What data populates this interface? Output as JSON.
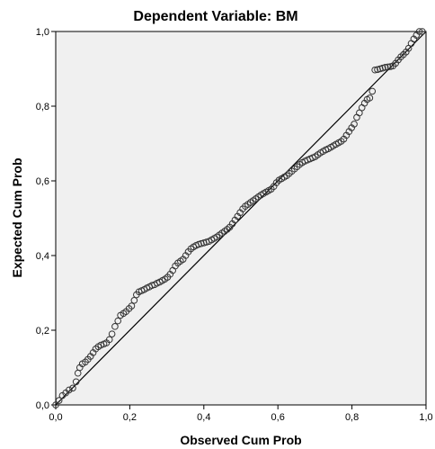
{
  "chart_data": {
    "type": "scatter",
    "title": "Dependent Variable: BM",
    "xlabel": "Observed Cum Prob",
    "ylabel": "Expected Cum Prob",
    "xlim": [
      0,
      1
    ],
    "ylim": [
      0,
      1
    ],
    "x_ticks": [
      "0,0",
      "0,2",
      "0,4",
      "0,6",
      "0,8",
      "1,0"
    ],
    "y_ticks": [
      "0,0",
      "0,2",
      "0,4",
      "0,6",
      "0,8",
      "1,0"
    ],
    "grid": false,
    "legend": "none",
    "reference_line": {
      "from": [
        0,
        0
      ],
      "to": [
        1,
        1
      ]
    },
    "colors": {
      "plot_background": "#f0f0f0",
      "marker_stroke": "#333333",
      "line": "#000000"
    },
    "points": [
      [
        0.0,
        0.0
      ],
      [
        0.009,
        0.012
      ],
      [
        0.018,
        0.025
      ],
      [
        0.027,
        0.032
      ],
      [
        0.036,
        0.04
      ],
      [
        0.046,
        0.045
      ],
      [
        0.055,
        0.062
      ],
      [
        0.06,
        0.085
      ],
      [
        0.065,
        0.1
      ],
      [
        0.072,
        0.11
      ],
      [
        0.08,
        0.115
      ],
      [
        0.087,
        0.122
      ],
      [
        0.094,
        0.13
      ],
      [
        0.101,
        0.14
      ],
      [
        0.108,
        0.15
      ],
      [
        0.115,
        0.156
      ],
      [
        0.122,
        0.16
      ],
      [
        0.13,
        0.163
      ],
      [
        0.137,
        0.166
      ],
      [
        0.145,
        0.175
      ],
      [
        0.152,
        0.19
      ],
      [
        0.16,
        0.21
      ],
      [
        0.168,
        0.225
      ],
      [
        0.175,
        0.24
      ],
      [
        0.183,
        0.245
      ],
      [
        0.19,
        0.25
      ],
      [
        0.198,
        0.258
      ],
      [
        0.205,
        0.265
      ],
      [
        0.212,
        0.28
      ],
      [
        0.218,
        0.295
      ],
      [
        0.225,
        0.303
      ],
      [
        0.232,
        0.306
      ],
      [
        0.239,
        0.309
      ],
      [
        0.246,
        0.313
      ],
      [
        0.253,
        0.316
      ],
      [
        0.26,
        0.32
      ],
      [
        0.267,
        0.322
      ],
      [
        0.274,
        0.326
      ],
      [
        0.281,
        0.329
      ],
      [
        0.288,
        0.333
      ],
      [
        0.295,
        0.337
      ],
      [
        0.302,
        0.342
      ],
      [
        0.309,
        0.35
      ],
      [
        0.316,
        0.36
      ],
      [
        0.323,
        0.372
      ],
      [
        0.33,
        0.38
      ],
      [
        0.337,
        0.385
      ],
      [
        0.344,
        0.39
      ],
      [
        0.351,
        0.4
      ],
      [
        0.358,
        0.41
      ],
      [
        0.365,
        0.418
      ],
      [
        0.372,
        0.423
      ],
      [
        0.379,
        0.427
      ],
      [
        0.386,
        0.43
      ],
      [
        0.393,
        0.432
      ],
      [
        0.4,
        0.434
      ],
      [
        0.407,
        0.436
      ],
      [
        0.414,
        0.438
      ],
      [
        0.421,
        0.442
      ],
      [
        0.428,
        0.446
      ],
      [
        0.435,
        0.45
      ],
      [
        0.442,
        0.455
      ],
      [
        0.449,
        0.46
      ],
      [
        0.456,
        0.465
      ],
      [
        0.463,
        0.47
      ],
      [
        0.47,
        0.476
      ],
      [
        0.477,
        0.485
      ],
      [
        0.484,
        0.495
      ],
      [
        0.491,
        0.505
      ],
      [
        0.498,
        0.515
      ],
      [
        0.505,
        0.525
      ],
      [
        0.512,
        0.532
      ],
      [
        0.519,
        0.537
      ],
      [
        0.526,
        0.542
      ],
      [
        0.533,
        0.547
      ],
      [
        0.54,
        0.552
      ],
      [
        0.547,
        0.557
      ],
      [
        0.554,
        0.562
      ],
      [
        0.561,
        0.566
      ],
      [
        0.568,
        0.57
      ],
      [
        0.575,
        0.574
      ],
      [
        0.582,
        0.578
      ],
      [
        0.589,
        0.585
      ],
      [
        0.596,
        0.595
      ],
      [
        0.603,
        0.602
      ],
      [
        0.61,
        0.606
      ],
      [
        0.617,
        0.61
      ],
      [
        0.624,
        0.614
      ],
      [
        0.631,
        0.62
      ],
      [
        0.638,
        0.626
      ],
      [
        0.645,
        0.632
      ],
      [
        0.652,
        0.638
      ],
      [
        0.659,
        0.644
      ],
      [
        0.666,
        0.649
      ],
      [
        0.673,
        0.653
      ],
      [
        0.68,
        0.656
      ],
      [
        0.687,
        0.659
      ],
      [
        0.694,
        0.662
      ],
      [
        0.701,
        0.665
      ],
      [
        0.708,
        0.67
      ],
      [
        0.715,
        0.675
      ],
      [
        0.722,
        0.679
      ],
      [
        0.729,
        0.683
      ],
      [
        0.736,
        0.686
      ],
      [
        0.743,
        0.69
      ],
      [
        0.75,
        0.694
      ],
      [
        0.757,
        0.698
      ],
      [
        0.764,
        0.702
      ],
      [
        0.771,
        0.706
      ],
      [
        0.778,
        0.712
      ],
      [
        0.785,
        0.722
      ],
      [
        0.792,
        0.732
      ],
      [
        0.799,
        0.742
      ],
      [
        0.806,
        0.752
      ],
      [
        0.813,
        0.77
      ],
      [
        0.82,
        0.782
      ],
      [
        0.827,
        0.796
      ],
      [
        0.834,
        0.808
      ],
      [
        0.841,
        0.818
      ],
      [
        0.848,
        0.822
      ],
      [
        0.855,
        0.84
      ],
      [
        0.862,
        0.897
      ],
      [
        0.869,
        0.898
      ],
      [
        0.876,
        0.9
      ],
      [
        0.883,
        0.902
      ],
      [
        0.89,
        0.904
      ],
      [
        0.897,
        0.905
      ],
      [
        0.904,
        0.906
      ],
      [
        0.911,
        0.908
      ],
      [
        0.918,
        0.915
      ],
      [
        0.925,
        0.924
      ],
      [
        0.932,
        0.932
      ],
      [
        0.939,
        0.938
      ],
      [
        0.946,
        0.945
      ],
      [
        0.953,
        0.955
      ],
      [
        0.96,
        0.968
      ],
      [
        0.967,
        0.98
      ],
      [
        0.974,
        0.99
      ],
      [
        0.982,
        1.0
      ],
      [
        0.99,
        1.0
      ]
    ]
  }
}
